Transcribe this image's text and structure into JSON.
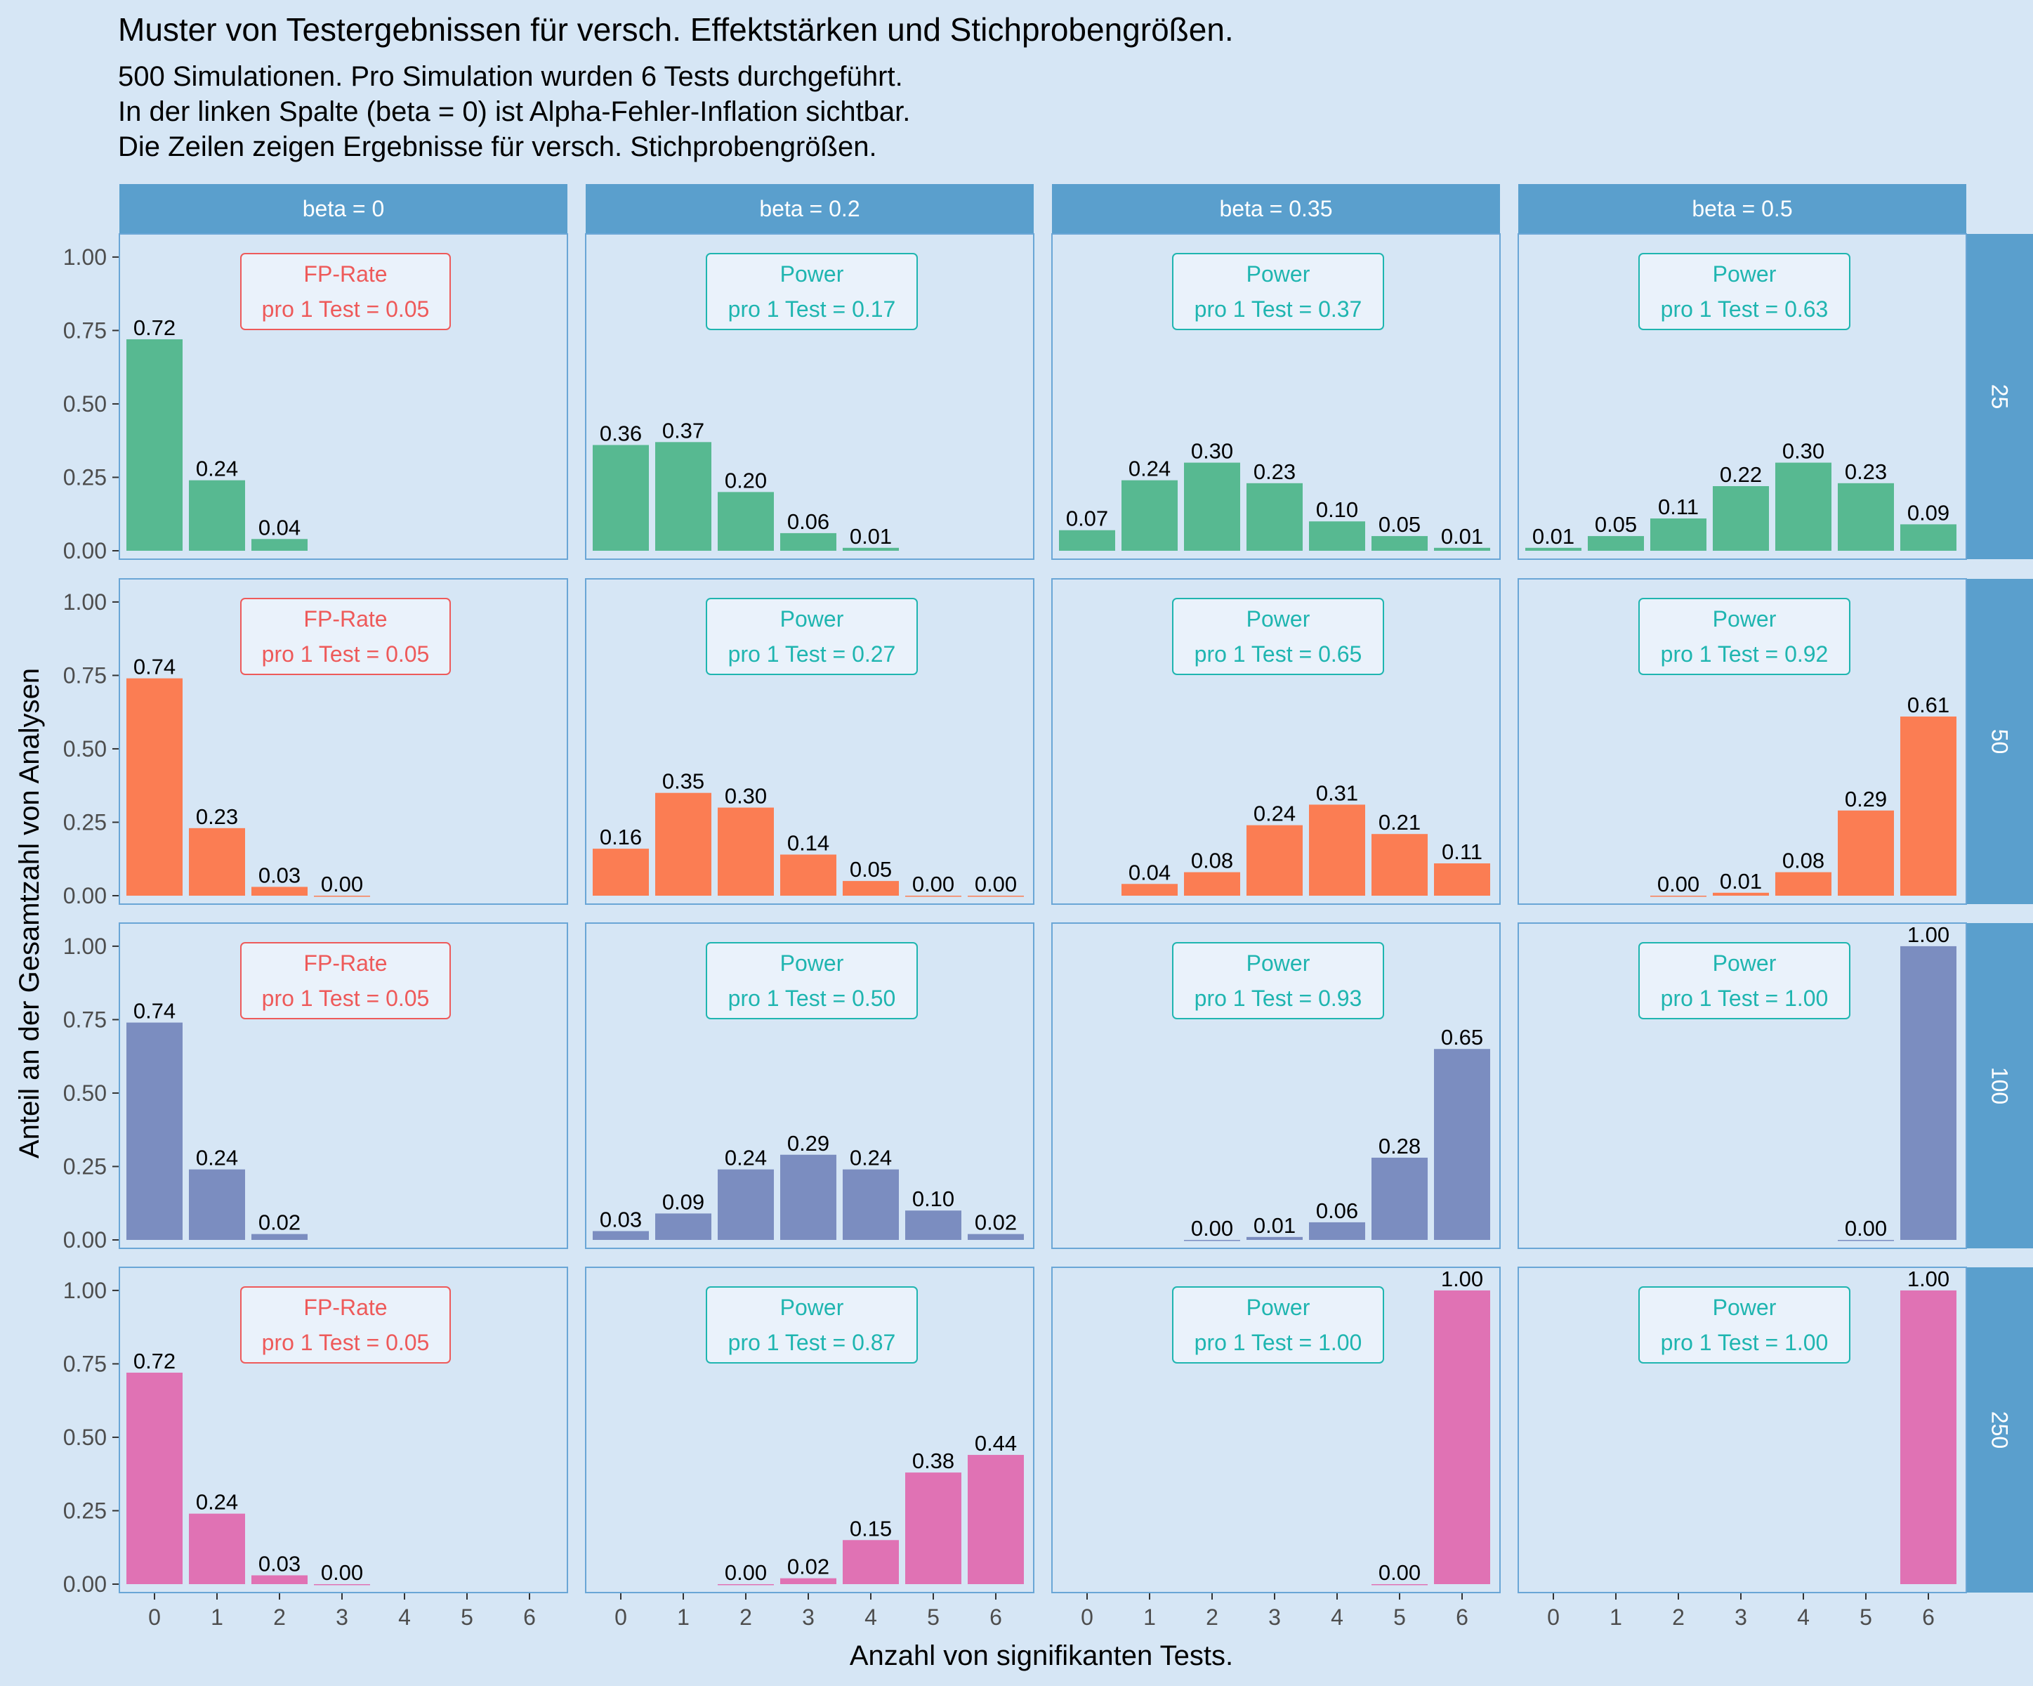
{
  "colors": {
    "background": "#d6e6f5",
    "strip": "#5a9fcd",
    "panel_border": "#6aa6d6",
    "fp_red": "#ee5a5a",
    "power_teal": "#1fb5b0",
    "rows": [
      "#57b991",
      "#fb7d53",
      "#7b8dc0",
      "#e072b4"
    ]
  },
  "chart_data": {
    "type": "bar",
    "title": "Muster von Testergebnissen für versch. Effektstärken und Stichprobengrößen.",
    "subtitle": [
      "500 Simulationen. Pro Simulation wurden 6 Tests durchgeführt.",
      "In der linken Spalte (beta = 0) ist Alpha-Fehler-Inflation sichtbar.",
      "Die Zeilen zeigen Ergebnisse für versch. Stichprobengrößen."
    ],
    "xlabel": "Anzahl von signifikanten Tests.",
    "ylabel": "Anteil an der Gesamtzahl von Analysen",
    "ylim": [
      0,
      1.05
    ],
    "yticks": [
      "0.00",
      "0.25",
      "0.50",
      "0.75",
      "1.00"
    ],
    "categories": [
      "0",
      "1",
      "2",
      "3",
      "4",
      "5",
      "6"
    ],
    "col_facets": [
      "beta = 0",
      "beta = 0.2",
      "beta = 0.35",
      "beta = 0.5"
    ],
    "row_facets": [
      "25",
      "50",
      "100",
      "250"
    ],
    "panels": [
      [
        {
          "values": [
            0.72,
            0.24,
            0.04,
            null,
            null,
            null,
            null
          ],
          "ann1": "FP-Rate",
          "ann2": "pro 1 Test = 0.05",
          "ann_kind": "fp"
        },
        {
          "values": [
            0.36,
            0.37,
            0.2,
            0.06,
            0.01,
            null,
            null
          ],
          "ann1": "Power",
          "ann2": "pro 1 Test = 0.17",
          "ann_kind": "power"
        },
        {
          "values": [
            0.07,
            0.24,
            0.3,
            0.23,
            0.1,
            0.05,
            0.01
          ],
          "ann1": "Power",
          "ann2": "pro 1 Test = 0.37",
          "ann_kind": "power"
        },
        {
          "values": [
            0.01,
            0.05,
            0.11,
            0.22,
            0.3,
            0.23,
            0.09
          ],
          "ann1": "Power",
          "ann2": "pro 1 Test = 0.63",
          "ann_kind": "power"
        }
      ],
      [
        {
          "values": [
            0.74,
            0.23,
            0.03,
            0.0,
            null,
            null,
            null
          ],
          "ann1": "FP-Rate",
          "ann2": "pro 1 Test = 0.05",
          "ann_kind": "fp"
        },
        {
          "values": [
            0.16,
            0.35,
            0.3,
            0.14,
            0.05,
            0.0,
            0.0
          ],
          "ann1": "Power",
          "ann2": "pro 1 Test = 0.27",
          "ann_kind": "power"
        },
        {
          "values": [
            null,
            0.04,
            0.08,
            0.24,
            0.31,
            0.21,
            0.11
          ],
          "ann1": "Power",
          "ann2": "pro 1 Test = 0.65",
          "ann_kind": "power"
        },
        {
          "values": [
            null,
            null,
            0.0,
            0.01,
            0.08,
            0.29,
            0.61
          ],
          "ann1": "Power",
          "ann2": "pro 1 Test = 0.92",
          "ann_kind": "power"
        }
      ],
      [
        {
          "values": [
            0.74,
            0.24,
            0.02,
            null,
            null,
            null,
            null
          ],
          "ann1": "FP-Rate",
          "ann2": "pro 1 Test = 0.05",
          "ann_kind": "fp"
        },
        {
          "values": [
            0.03,
            0.09,
            0.24,
            0.29,
            0.24,
            0.1,
            0.02
          ],
          "ann1": "Power",
          "ann2": "pro 1 Test = 0.50",
          "ann_kind": "power"
        },
        {
          "values": [
            null,
            null,
            0.0,
            0.01,
            0.06,
            0.28,
            0.65
          ],
          "ann1": "Power",
          "ann2": "pro 1 Test = 0.93",
          "ann_kind": "power"
        },
        {
          "values": [
            null,
            null,
            null,
            null,
            null,
            0.0,
            1.0
          ],
          "ann1": "Power",
          "ann2": "pro 1 Test = 1.00",
          "ann_kind": "power"
        }
      ],
      [
        {
          "values": [
            0.72,
            0.24,
            0.03,
            0.0,
            null,
            null,
            null
          ],
          "ann1": "FP-Rate",
          "ann2": "pro 1 Test = 0.05",
          "ann_kind": "fp"
        },
        {
          "values": [
            null,
            null,
            0.0,
            0.02,
            0.15,
            0.38,
            0.44
          ],
          "ann1": "Power",
          "ann2": "pro 1 Test = 0.87",
          "ann_kind": "power"
        },
        {
          "values": [
            null,
            null,
            null,
            null,
            null,
            0.0,
            1.0
          ],
          "ann1": "Power",
          "ann2": "pro 1 Test = 1.00",
          "ann_kind": "power"
        },
        {
          "values": [
            null,
            null,
            null,
            null,
            null,
            null,
            1.0
          ],
          "ann1": "Power",
          "ann2": "pro 1 Test = 1.00",
          "ann_kind": "power"
        }
      ]
    ]
  }
}
